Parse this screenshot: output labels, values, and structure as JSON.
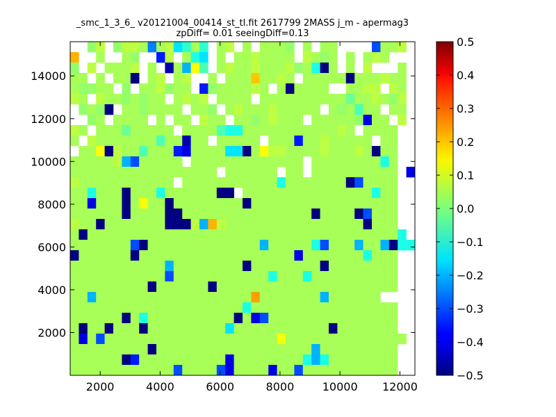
{
  "chart_data": {
    "type": "heatmap",
    "title": "_smc_1_3_6_ v20121004_00414_st_tl.fit 2617799 2MASS j_m - apermag3",
    "subtitle": "zpDiff= 0.01 seeingDiff=0.13",
    "xlabel": "",
    "ylabel": "",
    "xlim": [
      1000,
      12500
    ],
    "ylim": [
      0,
      15600
    ],
    "x_ticks": [
      "2000",
      "4000",
      "6000",
      "8000",
      "10000",
      "12000"
    ],
    "y_ticks": [
      "2000",
      "4000",
      "6000",
      "8000",
      "10000",
      "12000",
      "14000"
    ],
    "grid": false,
    "bin_size": [
      287.5,
      400
    ],
    "colorbar": {
      "min": -0.5,
      "max": 0.5,
      "colormap": "jet",
      "ticks": [
        "0.5",
        "0.4",
        "0.3",
        "0.2",
        "0.1",
        "0.0",
        "−0.1",
        "−0.2",
        "−0.3",
        "−0.4",
        "−0.5"
      ]
    },
    "cells_note": "rows listed from top (y≈15400) to bottom (y≈200); each row: column index 0..39 with values, null = empty",
    "rows": [
      [
        null,
        null,
        0.02,
        0.06,
        null,
        0.02,
        0.06,
        0.06,
        0.04,
        -0.25,
        0.04,
        0.06,
        -0.15,
        -0.08,
        0.04,
        -0.08,
        null,
        0.04,
        0.06,
        null,
        0.04,
        null,
        0.04,
        0.04,
        0.04,
        0.02,
        null,
        0.04,
        null,
        0.04,
        0.04,
        null,
        null,
        null,
        null,
        -0.3,
        0.04,
        0.04,
        0.06,
        null
      ],
      [
        0.2,
        null,
        null,
        0.04,
        null,
        null,
        0.04,
        0.02,
        null,
        null,
        -0.35,
        0.06,
        null,
        0.04,
        -0.1,
        -0.15,
        null,
        0.04,
        null,
        0.04,
        0.04,
        0.06,
        0.04,
        0.04,
        0.04,
        0.04,
        null,
        0.06,
        0.04,
        0.02,
        0.04,
        null,
        0.04,
        null,
        0.04,
        0.06,
        0.04,
        null,
        null,
        null
      ],
      [
        0.02,
        null,
        0.06,
        null,
        0.04,
        0.04,
        0.04,
        0.06,
        null,
        0.04,
        null,
        -0.45,
        0.04,
        -0.2,
        0.12,
        -0.05,
        null,
        0.04,
        0.06,
        0.04,
        0.04,
        0.06,
        0.04,
        0.04,
        0.04,
        0.06,
        0.02,
        0.04,
        -0.1,
        -0.5,
        0.04,
        null,
        0.04,
        null,
        0.06,
        null,
        null,
        null,
        0.04,
        null
      ],
      [
        0.04,
        0.04,
        null,
        0.04,
        null,
        0.04,
        0.04,
        -0.5,
        null,
        0.04,
        0.06,
        null,
        0.04,
        0.06,
        null,
        null,
        0.04,
        null,
        0.04,
        0.04,
        0.04,
        0.18,
        0.04,
        0.04,
        0.06,
        0.04,
        null,
        0.04,
        0.04,
        0.04,
        0.04,
        0.04,
        -0.5,
        0.04,
        0.04,
        0.04,
        0.06,
        0.04,
        0.04,
        null
      ],
      [
        0.04,
        0.02,
        0.02,
        0.04,
        0.04,
        null,
        0.02,
        null,
        0.04,
        0.04,
        0.06,
        0.02,
        0.04,
        0.04,
        null,
        -0.35,
        0.02,
        0.04,
        0.04,
        0.04,
        0.04,
        0.06,
        0.04,
        null,
        0.04,
        -0.5,
        0.04,
        0.04,
        0.04,
        0.04,
        null,
        null,
        0.04,
        0.04,
        0.06,
        0.06,
        null,
        0.06,
        0.04,
        null
      ],
      [
        0.06,
        0.04,
        null,
        0.06,
        0.04,
        0.04,
        0.02,
        0.04,
        0.02,
        0.04,
        0.04,
        null,
        0.04,
        0.06,
        0.04,
        0.06,
        null,
        0.04,
        0.04,
        0.04,
        0.04,
        null,
        0.04,
        0.04,
        0.04,
        0.04,
        0.04,
        0.04,
        0.04,
        0.04,
        0.04,
        0.04,
        -0.02,
        0.04,
        0.04,
        0.06,
        0.04,
        0.02,
        0.06,
        null
      ],
      [
        null,
        0.02,
        0.04,
        0.02,
        -0.5,
        null,
        0.04,
        0.04,
        0.02,
        0.04,
        0.04,
        0.04,
        0.04,
        null,
        0.04,
        0.04,
        0.02,
        null,
        0.04,
        0.06,
        0.04,
        0.04,
        0.04,
        0.06,
        0.04,
        0.04,
        0.04,
        0.04,
        0.04,
        null,
        0.04,
        0.02,
        0.04,
        -0.05,
        0.04,
        0.04,
        null,
        0.04,
        0.04,
        null
      ],
      [
        null,
        null,
        0.02,
        0.04,
        null,
        0.04,
        0.04,
        0.04,
        0.04,
        null,
        0.04,
        null,
        0.04,
        0.04,
        null,
        0.06,
        0.04,
        0.04,
        null,
        0.04,
        0.04,
        0.02,
        0.04,
        0.06,
        0.04,
        0.04,
        0.04,
        null,
        0.04,
        0.04,
        0.04,
        0.04,
        0.04,
        0.02,
        -0.4,
        0.04,
        0.04,
        null,
        0.06,
        null
      ],
      [
        0.06,
        0.04,
        null,
        0.04,
        0.04,
        0.04,
        -0.02,
        0.04,
        0.04,
        0.04,
        0.04,
        0.04,
        null,
        0.04,
        0.04,
        0.04,
        0.04,
        -0.05,
        -0.1,
        -0.1,
        0.04,
        0.04,
        0.04,
        0.04,
        0.04,
        0.04,
        0.04,
        0.04,
        0.04,
        0.04,
        0.04,
        0.06,
        0.04,
        null,
        0.04,
        0.04,
        0.04,
        0.04,
        null,
        null
      ],
      [
        0.04,
        null,
        0.06,
        0.04,
        0.04,
        0.04,
        0.04,
        0.04,
        0.04,
        0.04,
        -0.05,
        0.04,
        0.04,
        -0.45,
        0.04,
        0.04,
        null,
        0.04,
        0.04,
        0.04,
        0.04,
        0.04,
        null,
        0.04,
        0.04,
        0.04,
        -0.35,
        0.04,
        0.04,
        0.06,
        0.04,
        0.04,
        0.04,
        0.04,
        0.04,
        null,
        0.04,
        0.04,
        null,
        null
      ],
      [
        null,
        0.04,
        0.04,
        0.12,
        -0.5,
        0.06,
        0.04,
        0.04,
        -0.05,
        0.04,
        0.04,
        0.04,
        -0.35,
        -0.4,
        0.04,
        0.04,
        0.04,
        0.04,
        -0.15,
        -0.15,
        -0.5,
        0.04,
        0.12,
        0.06,
        0.06,
        0.04,
        0.04,
        0.04,
        0.04,
        0.06,
        0.04,
        0.04,
        0.04,
        0.06,
        0.04,
        -0.5,
        0.04,
        0.04,
        null,
        null
      ],
      [
        0.04,
        0.04,
        0.04,
        0.04,
        0.04,
        0.06,
        -0.2,
        -0.3,
        0.04,
        0.04,
        0.04,
        0.04,
        0.04,
        null,
        0.04,
        0.04,
        0.04,
        0.04,
        0.04,
        0.04,
        0.04,
        0.04,
        0.04,
        0.04,
        0.04,
        0.04,
        0.04,
        null,
        0.04,
        0.04,
        0.04,
        0.04,
        0.04,
        0.04,
        0.04,
        0.04,
        -0.1,
        0.04,
        null,
        null
      ],
      [
        0.04,
        0.04,
        0.04,
        0.04,
        0.04,
        0.04,
        0.04,
        0.04,
        0.04,
        0.04,
        0.04,
        0.04,
        0.04,
        0.04,
        0.04,
        0.04,
        0.04,
        null,
        0.04,
        0.04,
        0.04,
        0.04,
        0.04,
        0.04,
        null,
        0.04,
        0.04,
        null,
        0.04,
        0.04,
        0.04,
        0.04,
        0.04,
        0.04,
        0.04,
        0.04,
        0.04,
        0.04,
        null,
        -0.4
      ],
      [
        0.06,
        0.04,
        0.04,
        0.04,
        0.04,
        0.04,
        0.04,
        0.04,
        0.04,
        0.04,
        0.04,
        0.04,
        null,
        0.04,
        0.04,
        0.04,
        0.04,
        0.04,
        0.04,
        0.04,
        0.04,
        0.04,
        0.04,
        0.04,
        -0.1,
        0.04,
        0.04,
        0.04,
        0.04,
        0.04,
        0.04,
        0.04,
        -0.5,
        -0.3,
        0.04,
        0.04,
        0.04,
        0.04,
        null,
        null
      ],
      [
        0.04,
        0.04,
        -0.1,
        0.04,
        0.04,
        0.04,
        -0.5,
        0.04,
        0.04,
        0.04,
        -0.1,
        0.04,
        0.04,
        0.04,
        0.04,
        0.04,
        0.04,
        -0.5,
        -0.5,
        null,
        0.04,
        0.04,
        0.04,
        0.04,
        0.04,
        0.04,
        0.04,
        0.04,
        0.04,
        0.04,
        0.04,
        0.04,
        0.04,
        0.04,
        0.04,
        -0.1,
        0.04,
        0.04,
        null,
        null
      ],
      [
        0.04,
        0.04,
        -0.4,
        0.04,
        0.04,
        0.04,
        -0.5,
        0.04,
        0.12,
        0.04,
        0.04,
        -0.5,
        0.04,
        0.04,
        0.04,
        0.04,
        0.04,
        0.04,
        0.04,
        0.04,
        -0.5,
        0.04,
        0.04,
        0.04,
        0.04,
        0.04,
        0.04,
        0.04,
        0.04,
        0.04,
        0.04,
        0.04,
        0.04,
        0.04,
        0.04,
        0.04,
        0.04,
        0.04,
        null,
        null
      ],
      [
        0.04,
        0.04,
        0.04,
        0.04,
        0.04,
        0.04,
        -0.5,
        0.04,
        0.04,
        0.04,
        0.04,
        -0.5,
        -0.5,
        0.04,
        0.04,
        0.04,
        0.04,
        0.04,
        0.04,
        0.04,
        0.04,
        0.04,
        0.04,
        0.04,
        0.04,
        0.04,
        0.04,
        0.04,
        -0.5,
        0.04,
        0.04,
        0.04,
        0.04,
        -0.5,
        -0.3,
        0.04,
        0.04,
        0.04,
        null,
        null
      ],
      [
        0.06,
        0.04,
        0.04,
        -0.5,
        0.04,
        0.04,
        0.04,
        0.04,
        0.04,
        0.04,
        0.04,
        -0.5,
        -0.5,
        -0.5,
        0.06,
        -0.2,
        0.2,
        0.06,
        0.04,
        0.04,
        0.04,
        0.04,
        0.04,
        0.04,
        0.04,
        0.04,
        0.04,
        0.04,
        0.04,
        0.04,
        0.04,
        0.04,
        0.04,
        0.04,
        -0.5,
        0.04,
        0.04,
        0.04,
        null,
        null
      ],
      [
        0.04,
        -0.5,
        0.04,
        0.04,
        0.04,
        0.04,
        0.04,
        0.04,
        0.04,
        0.04,
        0.04,
        0.04,
        0.04,
        0.04,
        0.04,
        0.04,
        0.04,
        0.04,
        0.04,
        0.04,
        0.04,
        0.04,
        0.04,
        0.04,
        0.04,
        0.04,
        0.04,
        0.04,
        0.04,
        0.04,
        0.04,
        0.04,
        0.04,
        0.04,
        0.04,
        0.04,
        0.04,
        0.04,
        -0.1,
        null
      ],
      [
        0.04,
        0.04,
        0.04,
        0.04,
        0.04,
        0.04,
        0.04,
        -0.3,
        -0.5,
        0.04,
        0.04,
        0.04,
        0.04,
        0.04,
        0.04,
        0.04,
        0.04,
        0.04,
        0.04,
        0.04,
        0.04,
        0.04,
        -0.2,
        0.04,
        0.04,
        0.04,
        0.04,
        0.04,
        -0.1,
        -0.3,
        0.04,
        0.04,
        0.04,
        -0.2,
        0.04,
        0.04,
        -0.2,
        -0.5,
        -0.1,
        -0.1
      ],
      [
        -0.5,
        0.04,
        0.04,
        0.04,
        0.04,
        0.04,
        0.04,
        -0.5,
        0.04,
        0.04,
        0.04,
        0.04,
        0.04,
        0.04,
        0.04,
        0.04,
        0.04,
        0.04,
        0.04,
        0.04,
        0.04,
        0.04,
        0.04,
        0.04,
        0.04,
        0.04,
        -0.4,
        0.04,
        0.04,
        0.04,
        0.04,
        0.04,
        0.04,
        0.04,
        -0.1,
        0.04,
        0.04,
        0.04,
        null,
        null
      ],
      [
        0.04,
        0.04,
        0.04,
        0.04,
        0.04,
        0.04,
        0.04,
        0.04,
        0.04,
        0.04,
        0.04,
        -0.2,
        0.04,
        0.04,
        0.04,
        0.04,
        0.04,
        0.04,
        0.04,
        0.04,
        -0.5,
        0.04,
        0.04,
        0.04,
        0.04,
        0.04,
        0.04,
        0.04,
        0.04,
        -0.5,
        0.04,
        0.04,
        0.04,
        0.04,
        0.04,
        0.04,
        0.04,
        0.04,
        null,
        null
      ],
      [
        0.04,
        0.04,
        0.04,
        0.04,
        0.04,
        0.04,
        0.04,
        0.04,
        0.04,
        0.04,
        0.04,
        -0.3,
        0.04,
        0.04,
        0.04,
        0.04,
        0.04,
        0.04,
        0.04,
        0.04,
        0.04,
        0.04,
        0.04,
        -0.1,
        0.04,
        0.04,
        0.04,
        -0.1,
        0.04,
        0.04,
        0.04,
        0.04,
        0.04,
        0.04,
        0.04,
        0.04,
        0.04,
        0.04,
        null,
        null
      ],
      [
        0.04,
        0.04,
        0.04,
        0.04,
        0.04,
        0.04,
        0.04,
        0.04,
        0.04,
        -0.5,
        0.04,
        0.04,
        0.04,
        0.04,
        0.04,
        0.04,
        -0.5,
        0.04,
        0.04,
        0.04,
        0.04,
        0.04,
        0.04,
        0.04,
        0.04,
        0.04,
        0.04,
        0.04,
        0.04,
        0.04,
        0.04,
        0.04,
        0.04,
        0.04,
        0.04,
        0.04,
        0.04,
        0.04,
        null,
        null
      ],
      [
        0.04,
        0.04,
        -0.2,
        0.04,
        0.04,
        0.04,
        0.04,
        0.04,
        0.04,
        0.04,
        0.04,
        0.04,
        0.04,
        0.04,
        0.04,
        0.04,
        0.04,
        0.04,
        0.04,
        0.04,
        0.04,
        0.22,
        0.04,
        0.04,
        0.04,
        0.04,
        0.04,
        0.04,
        0.04,
        -0.2,
        0.04,
        0.04,
        0.04,
        0.04,
        0.04,
        0.04,
        null,
        null,
        null,
        null
      ],
      [
        0.04,
        0.04,
        0.04,
        0.04,
        0.04,
        0.04,
        0.04,
        0.04,
        0.04,
        0.04,
        0.04,
        0.04,
        0.04,
        0.04,
        0.04,
        0.04,
        0.04,
        0.04,
        0.04,
        0.04,
        -0.1,
        0.04,
        0.04,
        0.04,
        0.04,
        0.04,
        0.04,
        0.04,
        0.04,
        0.04,
        0.04,
        0.04,
        0.04,
        0.04,
        0.04,
        0.04,
        0.04,
        0.04,
        null,
        null
      ],
      [
        0.04,
        0.04,
        0.04,
        0.04,
        0.04,
        0.04,
        -0.5,
        0.04,
        -0.1,
        0.04,
        0.04,
        0.04,
        0.04,
        0.04,
        0.04,
        0.04,
        0.04,
        0.04,
        0.04,
        -0.5,
        0.04,
        -0.4,
        -0.3,
        0.04,
        0.04,
        0.04,
        0.04,
        0.04,
        0.04,
        0.04,
        0.04,
        0.04,
        0.04,
        0.04,
        0.04,
        0.04,
        0.04,
        0.04,
        null,
        null
      ],
      [
        0.04,
        -0.5,
        0.04,
        0.04,
        -0.5,
        0.04,
        0.04,
        0.04,
        -0.5,
        0.04,
        0.04,
        0.04,
        0.04,
        0.04,
        0.04,
        0.04,
        0.04,
        0.04,
        -0.15,
        0.04,
        0.04,
        0.04,
        0.04,
        0.04,
        0.04,
        0.04,
        0.04,
        0.04,
        0.04,
        0.04,
        -0.5,
        0.04,
        0.04,
        0.04,
        0.04,
        0.04,
        0.04,
        0.04,
        null,
        null
      ],
      [
        0.04,
        -0.4,
        0.04,
        -0.3,
        0.04,
        0.04,
        0.04,
        0.04,
        0.04,
        0.04,
        0.04,
        0.04,
        0.04,
        0.04,
        0.04,
        0.04,
        0.04,
        0.04,
        0.04,
        0.04,
        0.04,
        0.04,
        0.04,
        0.04,
        0.12,
        0.04,
        0.04,
        0.04,
        0.04,
        0.04,
        0.04,
        0.04,
        0.04,
        0.04,
        0.04,
        0.04,
        0.04,
        0.04,
        0.04,
        null
      ],
      [
        0.04,
        0.04,
        0.04,
        0.04,
        0.04,
        0.04,
        0.04,
        0.04,
        0.04,
        -0.5,
        0.04,
        0.04,
        0.04,
        0.04,
        0.04,
        0.04,
        0.04,
        0.04,
        0.04,
        0.04,
        0.04,
        0.04,
        0.04,
        0.04,
        0.04,
        0.04,
        0.04,
        0.04,
        -0.2,
        0.04,
        0.04,
        0.04,
        0.04,
        0.04,
        0.04,
        0.04,
        0.04,
        0.04,
        null,
        null
      ],
      [
        0.04,
        0.04,
        0.04,
        0.04,
        0.04,
        0.04,
        -0.5,
        -0.35,
        0.04,
        0.04,
        0.04,
        0.04,
        0.04,
        0.04,
        0.04,
        0.04,
        0.04,
        0.04,
        -0.4,
        0.04,
        0.04,
        0.04,
        0.04,
        0.04,
        0.04,
        0.04,
        0.04,
        -0.1,
        -0.2,
        -0.1,
        0.04,
        0.04,
        0.04,
        0.04,
        0.04,
        0.04,
        0.04,
        0.04,
        null,
        null
      ],
      [
        0.04,
        0.04,
        0.04,
        0.04,
        0.04,
        0.04,
        0.04,
        0.04,
        0.04,
        0.04,
        0.04,
        0.04,
        -0.3,
        0.04,
        0.04,
        0.04,
        0.04,
        -0.3,
        -0.4,
        0.04,
        0.04,
        0.04,
        0.04,
        -0.4,
        0.04,
        0.04,
        -0.3,
        0.04,
        0.04,
        0.04,
        0.04,
        0.04,
        0.04,
        0.04,
        0.04,
        0.04,
        0.04,
        0.04,
        null,
        null
      ]
    ]
  }
}
